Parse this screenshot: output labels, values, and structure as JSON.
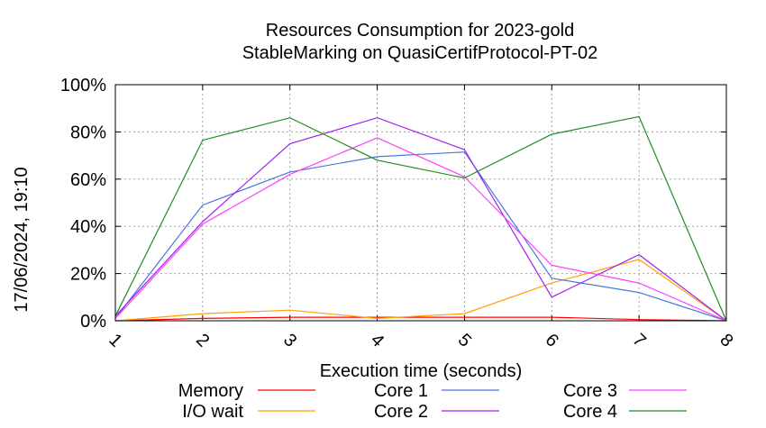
{
  "chart_data": {
    "type": "line",
    "title": "Resources Consumption for 2023-gold",
    "subtitle": "StableMarking on QuasiCertifProtocol-PT-02",
    "xlabel": "Execution time (seconds)",
    "ylabel": "",
    "side_label": "17/06/2024, 19:10",
    "x": [
      1,
      2,
      3,
      4,
      5,
      6,
      7,
      8
    ],
    "x_ticks": [
      "1",
      "2",
      "3",
      "4",
      "5",
      "6",
      "7",
      "8"
    ],
    "y_ticks": [
      "0%",
      "20%",
      "40%",
      "60%",
      "80%",
      "100%"
    ],
    "xlim": [
      1,
      8
    ],
    "ylim": [
      0,
      100
    ],
    "grid": true,
    "legend_position": "bottom",
    "series": [
      {
        "name": "Memory",
        "color": "#ff0000",
        "values": [
          0,
          1,
          1.5,
          1.5,
          1.5,
          1.5,
          0.5,
          0
        ]
      },
      {
        "name": "I/O wait",
        "color": "#ffa000",
        "values": [
          0,
          3,
          4.5,
          1,
          3,
          16,
          26,
          0
        ]
      },
      {
        "name": "Core 1",
        "color": "#4a78d6",
        "values": [
          1,
          49,
          63,
          69.5,
          71.5,
          18,
          12,
          0
        ]
      },
      {
        "name": "Core 2",
        "color": "#a020f0",
        "values": [
          2,
          42,
          75,
          86,
          72.5,
          10,
          28,
          0
        ]
      },
      {
        "name": "Core 3",
        "color": "#ff40ff",
        "values": [
          1,
          41,
          62,
          77.5,
          61,
          23.5,
          16,
          0
        ]
      },
      {
        "name": "Core 4",
        "color": "#228b22",
        "values": [
          2,
          76.5,
          86,
          68,
          60.5,
          79,
          86.5,
          0
        ]
      }
    ]
  }
}
